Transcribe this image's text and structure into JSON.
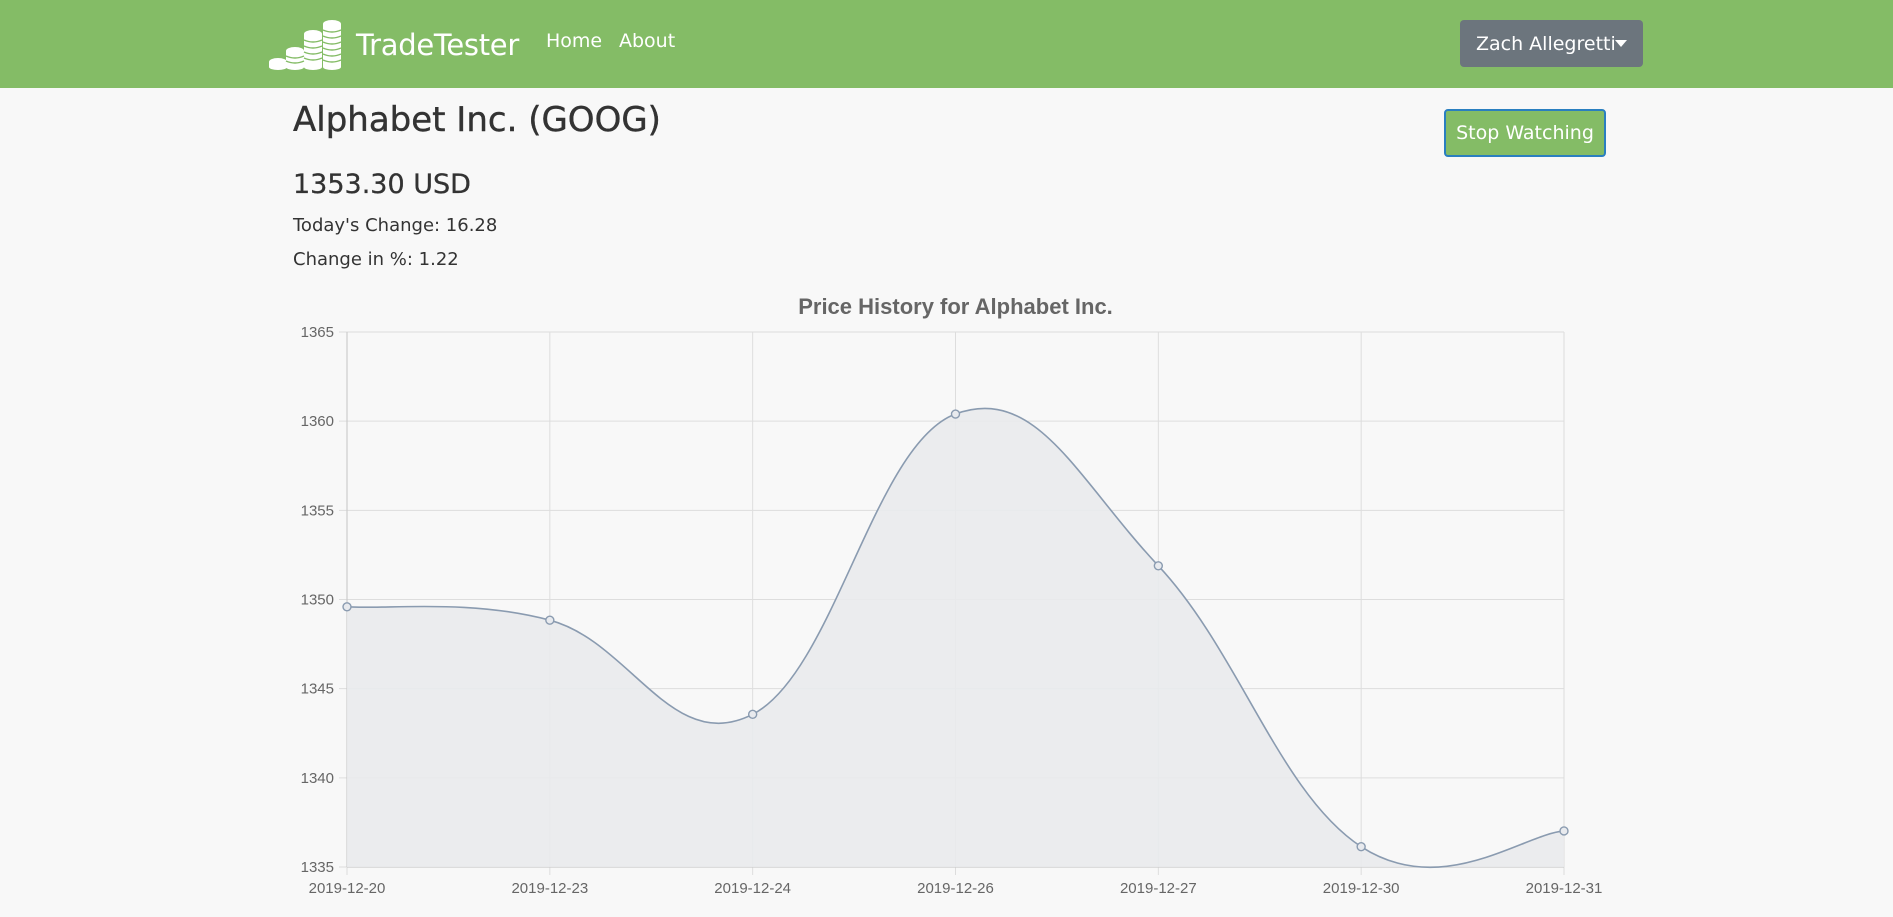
{
  "nav": {
    "brand": "TradeTester",
    "links": [
      "Home",
      "About"
    ],
    "user": "Zach Allegretti"
  },
  "stock": {
    "title": "Alphabet Inc. (GOOG)",
    "price": "1353.30 USD",
    "change_label": "Today's Change: 16.28",
    "percent_label": "Change in %: 1.22"
  },
  "actions": {
    "stop_watching": "Stop Watching"
  },
  "colors": {
    "navbar": "#84bc66",
    "line": "#8a9bb0",
    "fill": "#e9eaec",
    "grid": "#dddddd"
  },
  "chart_data": {
    "type": "area",
    "title": "Price History for Alphabet Inc.",
    "x": [
      "2019-12-20",
      "2019-12-23",
      "2019-12-24",
      "2019-12-26",
      "2019-12-27",
      "2019-12-30",
      "2019-12-31"
    ],
    "series": [
      {
        "values": [
          1349.59,
          1348.84,
          1343.56,
          1360.4,
          1351.89,
          1336.14,
          1337.02
        ]
      }
    ],
    "ylim": [
      1335,
      1365
    ],
    "yticks": [
      1335,
      1340,
      1345,
      1350,
      1355,
      1360,
      1365
    ],
    "grid": true,
    "xlabel": "",
    "ylabel": ""
  }
}
